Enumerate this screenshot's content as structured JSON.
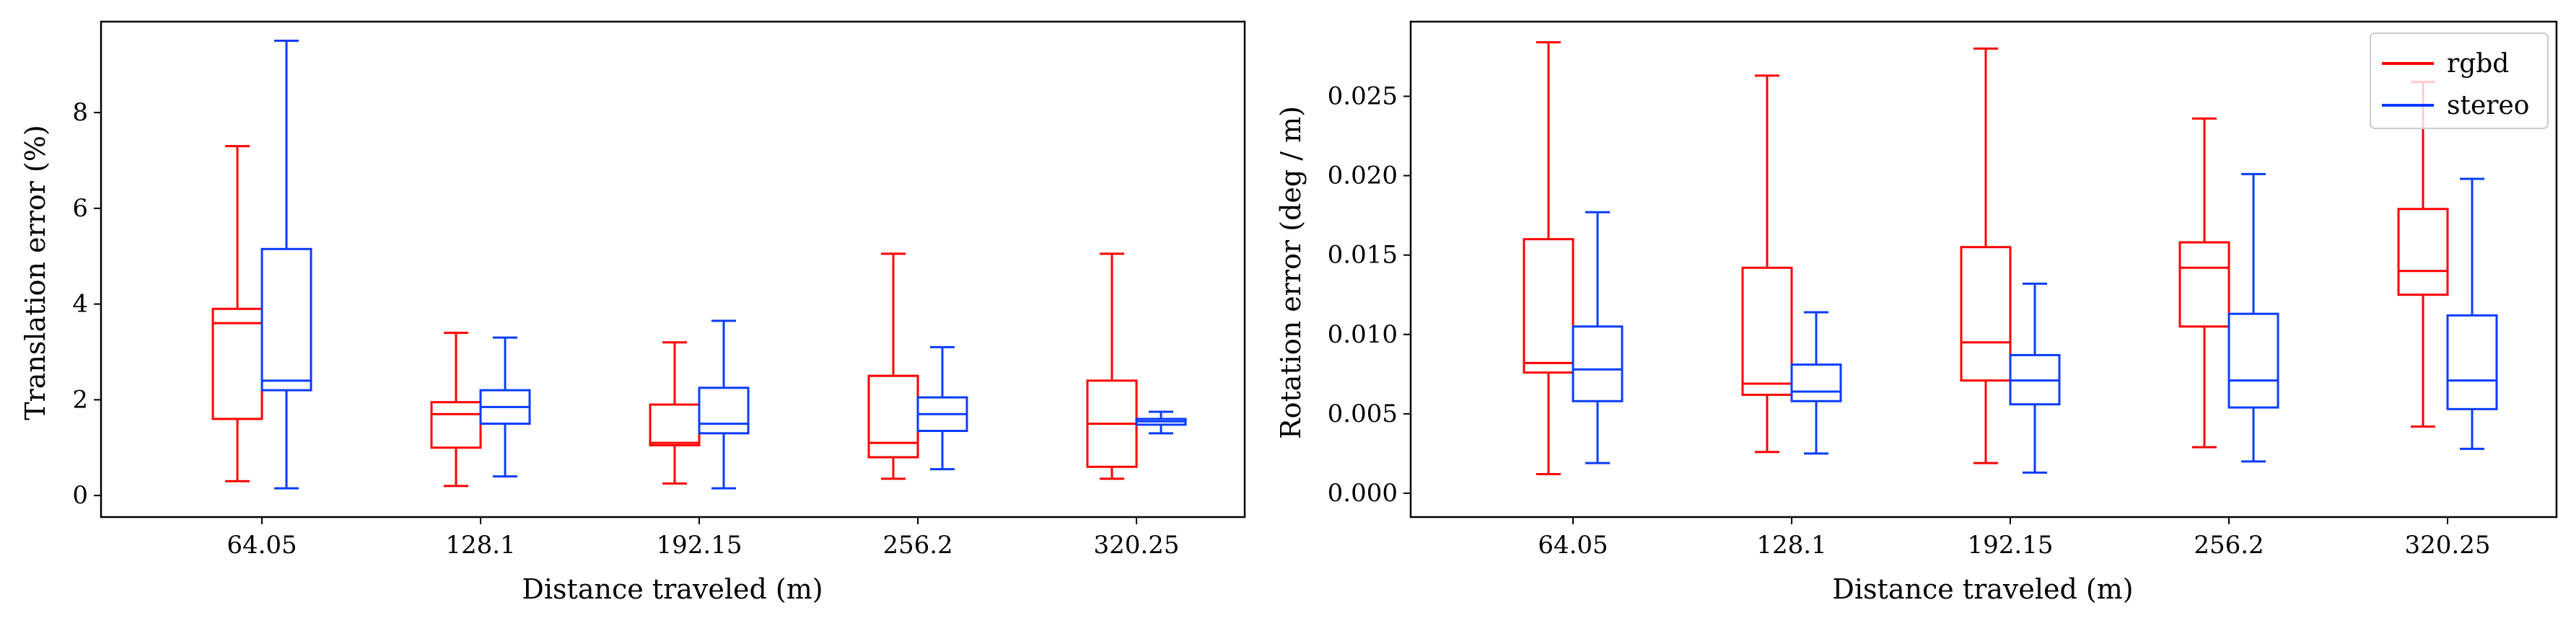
{
  "chart_data": [
    {
      "type": "box",
      "xlabel": "Distance traveled (m)",
      "ylabel": "Translation error (%)",
      "categories": [
        "64.05",
        "128.1",
        "192.15",
        "256.2",
        "320.25"
      ],
      "ylim": [
        -0.45,
        9.9
      ],
      "yticks": [
        "0",
        "2",
        "4",
        "6",
        "8"
      ],
      "legend": false,
      "series": [
        {
          "name": "rgbd",
          "color": "#ff0000",
          "boxes": [
            {
              "min": 0.3,
              "q1": 1.6,
              "median": 3.6,
              "q3": 3.9,
              "max": 7.3
            },
            {
              "min": 0.2,
              "q1": 1.0,
              "median": 1.7,
              "q3": 1.95,
              "max": 3.4
            },
            {
              "min": 0.25,
              "q1": 1.05,
              "median": 1.1,
              "q3": 1.9,
              "max": 3.2
            },
            {
              "min": 0.35,
              "q1": 0.8,
              "median": 1.1,
              "q3": 2.5,
              "max": 5.05
            },
            {
              "min": 0.35,
              "q1": 0.6,
              "median": 1.5,
              "q3": 2.4,
              "max": 5.05
            }
          ]
        },
        {
          "name": "stereo",
          "color": "#0a3cff",
          "boxes": [
            {
              "min": 0.15,
              "q1": 2.2,
              "median": 2.4,
              "q3": 5.15,
              "max": 9.5
            },
            {
              "min": 0.4,
              "q1": 1.5,
              "median": 1.85,
              "q3": 2.2,
              "max": 3.3
            },
            {
              "min": 0.15,
              "q1": 1.3,
              "median": 1.5,
              "q3": 2.25,
              "max": 3.65
            },
            {
              "min": 0.55,
              "q1": 1.35,
              "median": 1.7,
              "q3": 2.05,
              "max": 3.1
            },
            {
              "min": 1.3,
              "q1": 1.48,
              "median": 1.55,
              "q3": 1.6,
              "max": 1.75
            }
          ]
        }
      ]
    },
    {
      "type": "box",
      "xlabel": "Distance traveled (m)",
      "ylabel": "Rotation error (deg / m)",
      "categories": [
        "64.05",
        "128.1",
        "192.15",
        "256.2",
        "320.25"
      ],
      "ylim": [
        -0.0015,
        0.0297
      ],
      "yticks": [
        "0.000",
        "0.005",
        "0.010",
        "0.015",
        "0.020",
        "0.025"
      ],
      "legend": true,
      "legend_position": "top-right",
      "series": [
        {
          "name": "rgbd",
          "color": "#ff0000",
          "boxes": [
            {
              "min": 0.0012,
              "q1": 0.0076,
              "median": 0.0082,
              "q3": 0.016,
              "max": 0.0284
            },
            {
              "min": 0.0026,
              "q1": 0.0062,
              "median": 0.0069,
              "q3": 0.0142,
              "max": 0.0263
            },
            {
              "min": 0.0019,
              "q1": 0.0071,
              "median": 0.0095,
              "q3": 0.0155,
              "max": 0.028
            },
            {
              "min": 0.0029,
              "q1": 0.0105,
              "median": 0.0142,
              "q3": 0.0158,
              "max": 0.0236
            },
            {
              "min": 0.0042,
              "q1": 0.0125,
              "median": 0.014,
              "q3": 0.0179,
              "max": 0.0259
            }
          ]
        },
        {
          "name": "stereo",
          "color": "#0a3cff",
          "boxes": [
            {
              "min": 0.0019,
              "q1": 0.0058,
              "median": 0.0078,
              "q3": 0.0105,
              "max": 0.0177
            },
            {
              "min": 0.0025,
              "q1": 0.0058,
              "median": 0.0064,
              "q3": 0.0081,
              "max": 0.0114
            },
            {
              "min": 0.0013,
              "q1": 0.0056,
              "median": 0.0071,
              "q3": 0.0087,
              "max": 0.0132
            },
            {
              "min": 0.002,
              "q1": 0.0054,
              "median": 0.0071,
              "q3": 0.0113,
              "max": 0.0201
            },
            {
              "min": 0.0028,
              "q1": 0.0053,
              "median": 0.0071,
              "q3": 0.0112,
              "max": 0.0198
            }
          ]
        }
      ]
    }
  ]
}
